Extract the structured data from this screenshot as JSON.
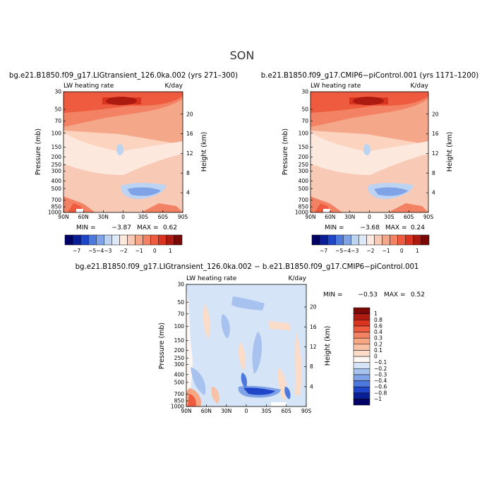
{
  "figure": {
    "title": "SON"
  },
  "colors": {
    "abs_scale": [
      "#000066",
      "#0a1e96",
      "#1f45c8",
      "#4d79dd",
      "#7fa3e6",
      "#bcd3f2",
      "#dde8f8",
      "#fde8de",
      "#f8c9b5",
      "#f5a78a",
      "#f28263",
      "#ee5b3e",
      "#d9341f",
      "#ad1a0f",
      "#7a0805"
    ],
    "diff_scale": [
      "#000066",
      "#0a1e96",
      "#1f45c8",
      "#4d79dd",
      "#7fa3e6",
      "#a7c2ee",
      "#d6e4f8",
      "#fdf6f2",
      "#fbdcc9",
      "#f8c2a6",
      "#f6a682",
      "#f28263",
      "#ee5b3e",
      "#d9341f",
      "#ad1a0f",
      "#7a0805"
    ]
  },
  "chart_data": [
    {
      "type": "heatmap",
      "title": "bg.e21.B1850.f09_g17.LIGtransient_126.0ka.002 (yrs 271–300)",
      "field_label": "LW heating rate",
      "units": "K/day",
      "ylabel": "Pressure (mb)",
      "ylabel_right": "Height (km)",
      "xlabel": "",
      "x_ticks": [
        "90N",
        "60N",
        "30N",
        "0",
        "30S",
        "60S",
        "90S"
      ],
      "y_ticks": [
        "30",
        "50",
        "70",
        "100",
        "150",
        "200",
        "250",
        "300",
        "400",
        "500",
        "700",
        "850",
        "1000"
      ],
      "y_ticks_right": [
        "20",
        "16",
        "12",
        "8",
        "4"
      ],
      "ylim": [
        1000,
        30
      ],
      "min_label": "MIN =",
      "min": "−3.87",
      "max_label": "MAX =",
      "max": "0.62",
      "colorbar_labels": [
        "−7",
        "−5",
        "−4",
        "−3",
        "−2",
        "−1",
        "0",
        "1"
      ]
    },
    {
      "type": "heatmap",
      "title": "b.e21.B1850.f09_g17.CMIP6−piControl.001 (yrs 1171–1200)",
      "field_label": "LW heating rate",
      "units": "K/day",
      "ylabel": "Pressure (mb)",
      "ylabel_right": "Height (km)",
      "xlabel": "",
      "x_ticks": [
        "90N",
        "60N",
        "30N",
        "0",
        "30S",
        "60S",
        "90S"
      ],
      "y_ticks": [
        "30",
        "50",
        "70",
        "100",
        "150",
        "200",
        "250",
        "300",
        "400",
        "500",
        "700",
        "850",
        "1000"
      ],
      "y_ticks_right": [
        "20",
        "16",
        "12",
        "8",
        "4"
      ],
      "ylim": [
        1000,
        30
      ],
      "min_label": "MIN =",
      "min": "−3.68",
      "max_label": "MAX =",
      "max": "0.24",
      "colorbar_labels": [
        "−7",
        "−5",
        "−4",
        "−3",
        "−2",
        "−1",
        "0",
        "1"
      ]
    },
    {
      "type": "heatmap",
      "title": "bg.e21.B1850.f09_g17.LIGtransient_126.0ka.002 − b.e21.B1850.f09_g17.CMIP6−piControl.001",
      "field_label": "LW heating rate",
      "units": "K/day",
      "ylabel": "Pressure (mb)",
      "ylabel_right": "Height (km)",
      "xlabel": "",
      "x_ticks": [
        "90N",
        "60N",
        "30N",
        "0",
        "30S",
        "60S",
        "90S"
      ],
      "y_ticks": [
        "30",
        "50",
        "70",
        "100",
        "150",
        "200",
        "250",
        "300",
        "400",
        "500",
        "700",
        "850",
        "1000"
      ],
      "y_ticks_right": [
        "20",
        "16",
        "12",
        "8",
        "4"
      ],
      "ylim": [
        1000,
        30
      ],
      "min_label": "MIN =",
      "min": "−0.53",
      "max_label": "MAX =",
      "max": "0.52",
      "colorbar_labels": [
        "1",
        "0.8",
        "0.6",
        "0.4",
        "0.3",
        "0.2",
        "0.1",
        "0",
        "−0.1",
        "−0.2",
        "−0.3",
        "−0.4",
        "−0.6",
        "−0.8",
        "−1"
      ]
    }
  ]
}
